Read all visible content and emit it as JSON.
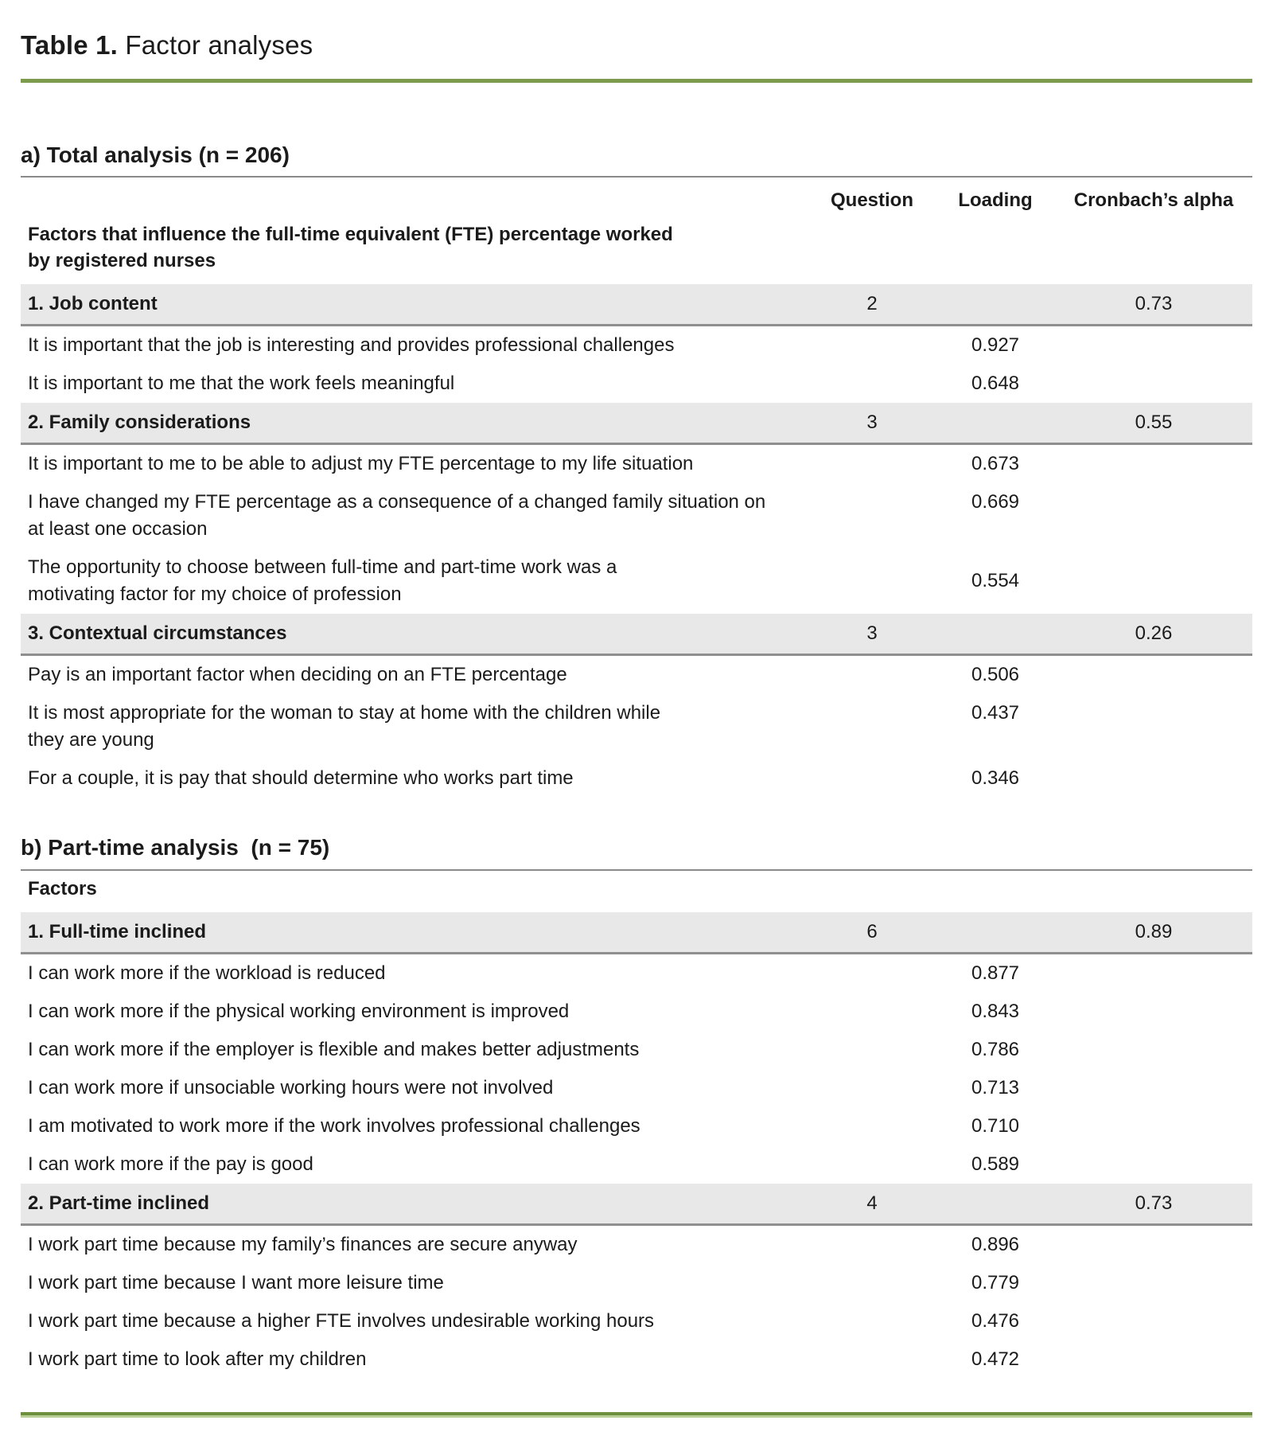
{
  "title": {
    "bold": "Table 1.",
    "rest": " Factor analyses"
  },
  "colors": {
    "accent_green": "#7c9b4d",
    "accent_green_dark": "#6e8f3e",
    "row_gray": "#e8e8e8",
    "rule_gray": "#8a8a8a",
    "text": "#1b1b1b"
  },
  "sections": [
    {
      "heading": "a) Total analysis (n = 206)",
      "columns": {
        "question": "Question",
        "loading": "Loading",
        "alpha": "Cronbach’s alpha"
      },
      "note_lines": [
        "Factors that influence the full-time equivalent (FTE) percentage worked",
        "by registered nurses"
      ],
      "factors": [
        {
          "label": "1. Job content",
          "question": "2",
          "alpha": "0.73",
          "items": [
            {
              "lines": [
                "It is important that the job is interesting and provides professional challenges"
              ],
              "loading": "0.927"
            },
            {
              "lines": [
                "It is important to me that the work feels meaningful"
              ],
              "loading": "0.648"
            }
          ]
        },
        {
          "label": "2. Family considerations",
          "question": "3",
          "alpha": "0.55",
          "items": [
            {
              "lines": [
                "It is important to me to be able to adjust my FTE percentage to my life situation"
              ],
              "loading": "0.673"
            },
            {
              "lines": [
                "I have changed my FTE percentage as a consequence of a changed family situation on",
                "at least one occasion"
              ],
              "loading": "0.669"
            },
            {
              "lines": [
                "The opportunity to choose between full-time and part-time work was a",
                "motivating factor for my choice of profession"
              ],
              "loading": "0.554"
            }
          ]
        },
        {
          "label": "3. Contextual circumstances",
          "question": "3",
          "alpha": "0.26",
          "items": [
            {
              "lines": [
                "Pay is an important factor when deciding on an FTE percentage"
              ],
              "loading": "0.506"
            },
            {
              "lines": [
                "It is most appropriate for the woman to stay at home with the children while",
                "they are young"
              ],
              "loading": "0.437"
            },
            {
              "lines": [
                "For a couple, it is pay that should determine who works part time"
              ],
              "loading": "0.346"
            }
          ]
        }
      ]
    },
    {
      "heading": "b) Part-time analysis  (n = 75)",
      "note_lines": [
        "Factors"
      ],
      "factors": [
        {
          "label": "1. Full-time inclined",
          "question": "6",
          "alpha": "0.89",
          "items": [
            {
              "lines": [
                "I can work more if the workload is reduced"
              ],
              "loading": "0.877"
            },
            {
              "lines": [
                "I can work more if the physical working environment is improved"
              ],
              "loading": "0.843"
            },
            {
              "lines": [
                "I can work more if the employer is flexible and makes better adjustments"
              ],
              "loading": "0.786"
            },
            {
              "lines": [
                "I can work more if unsociable working hours were not involved"
              ],
              "loading": "0.713"
            },
            {
              "lines": [
                "I am motivated to work more if the work involves professional challenges"
              ],
              "loading": "0.710"
            },
            {
              "lines": [
                "I can work more if the pay is good"
              ],
              "loading": "0.589"
            }
          ]
        },
        {
          "label": "2. Part-time inclined",
          "question": "4",
          "alpha": "0.73",
          "items": [
            {
              "lines": [
                "I work part time because my family’s finances are secure anyway"
              ],
              "loading": "0.896"
            },
            {
              "lines": [
                "I work part time because I want more leisure time"
              ],
              "loading": "0.779"
            },
            {
              "lines": [
                "I work part time because a higher FTE involves undesirable working hours"
              ],
              "loading": "0.476"
            },
            {
              "lines": [
                "I work part time to look after my children"
              ],
              "loading": "0.472"
            }
          ]
        }
      ]
    }
  ]
}
